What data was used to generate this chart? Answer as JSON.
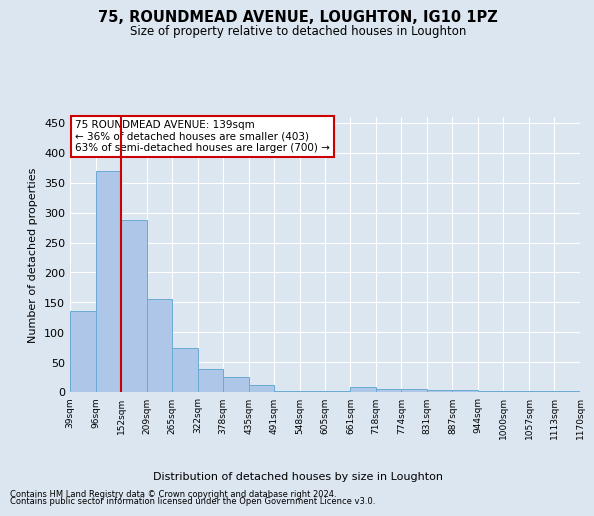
{
  "title": "75, ROUNDMEAD AVENUE, LOUGHTON, IG10 1PZ",
  "subtitle": "Size of property relative to detached houses in Loughton",
  "xlabel": "Distribution of detached houses by size in Loughton",
  "ylabel": "Number of detached properties",
  "bar_values": [
    136,
    370,
    287,
    155,
    74,
    38,
    25,
    11,
    2,
    2,
    2,
    8,
    5,
    5,
    4,
    3,
    2,
    1,
    1,
    1
  ],
  "bin_labels": [
    "39sqm",
    "96sqm",
    "152sqm",
    "209sqm",
    "265sqm",
    "322sqm",
    "378sqm",
    "435sqm",
    "491sqm",
    "548sqm",
    "605sqm",
    "661sqm",
    "718sqm",
    "774sqm",
    "831sqm",
    "887sqm",
    "944sqm",
    "1000sqm",
    "1057sqm",
    "1113sqm",
    "1170sqm"
  ],
  "bar_color": "#aec6e8",
  "bar_edge_color": "#6aaad4",
  "annotation_line1": "75 ROUNDMEAD AVENUE: 139sqm",
  "annotation_line2": "← 36% of detached houses are smaller (403)",
  "annotation_line3": "63% of semi-detached houses are larger (700) →",
  "annotation_box_color": "#cc0000",
  "vline_color": "#cc0000",
  "ylim": [
    0,
    460
  ],
  "yticks": [
    0,
    50,
    100,
    150,
    200,
    250,
    300,
    350,
    400,
    450
  ],
  "footer_line1": "Contains HM Land Registry data © Crown copyright and database right 2024.",
  "footer_line2": "Contains public sector information licensed under the Open Government Licence v3.0.",
  "background_color": "#dce6f0",
  "plot_background_color": "#dce6f0",
  "grid_color": "#ffffff",
  "bin_edges": [
    39,
    96,
    152,
    209,
    265,
    322,
    378,
    435,
    491,
    548,
    605,
    661,
    718,
    774,
    831,
    887,
    944,
    1000,
    1057,
    1113,
    1170
  ],
  "vline_bin_index": 2
}
